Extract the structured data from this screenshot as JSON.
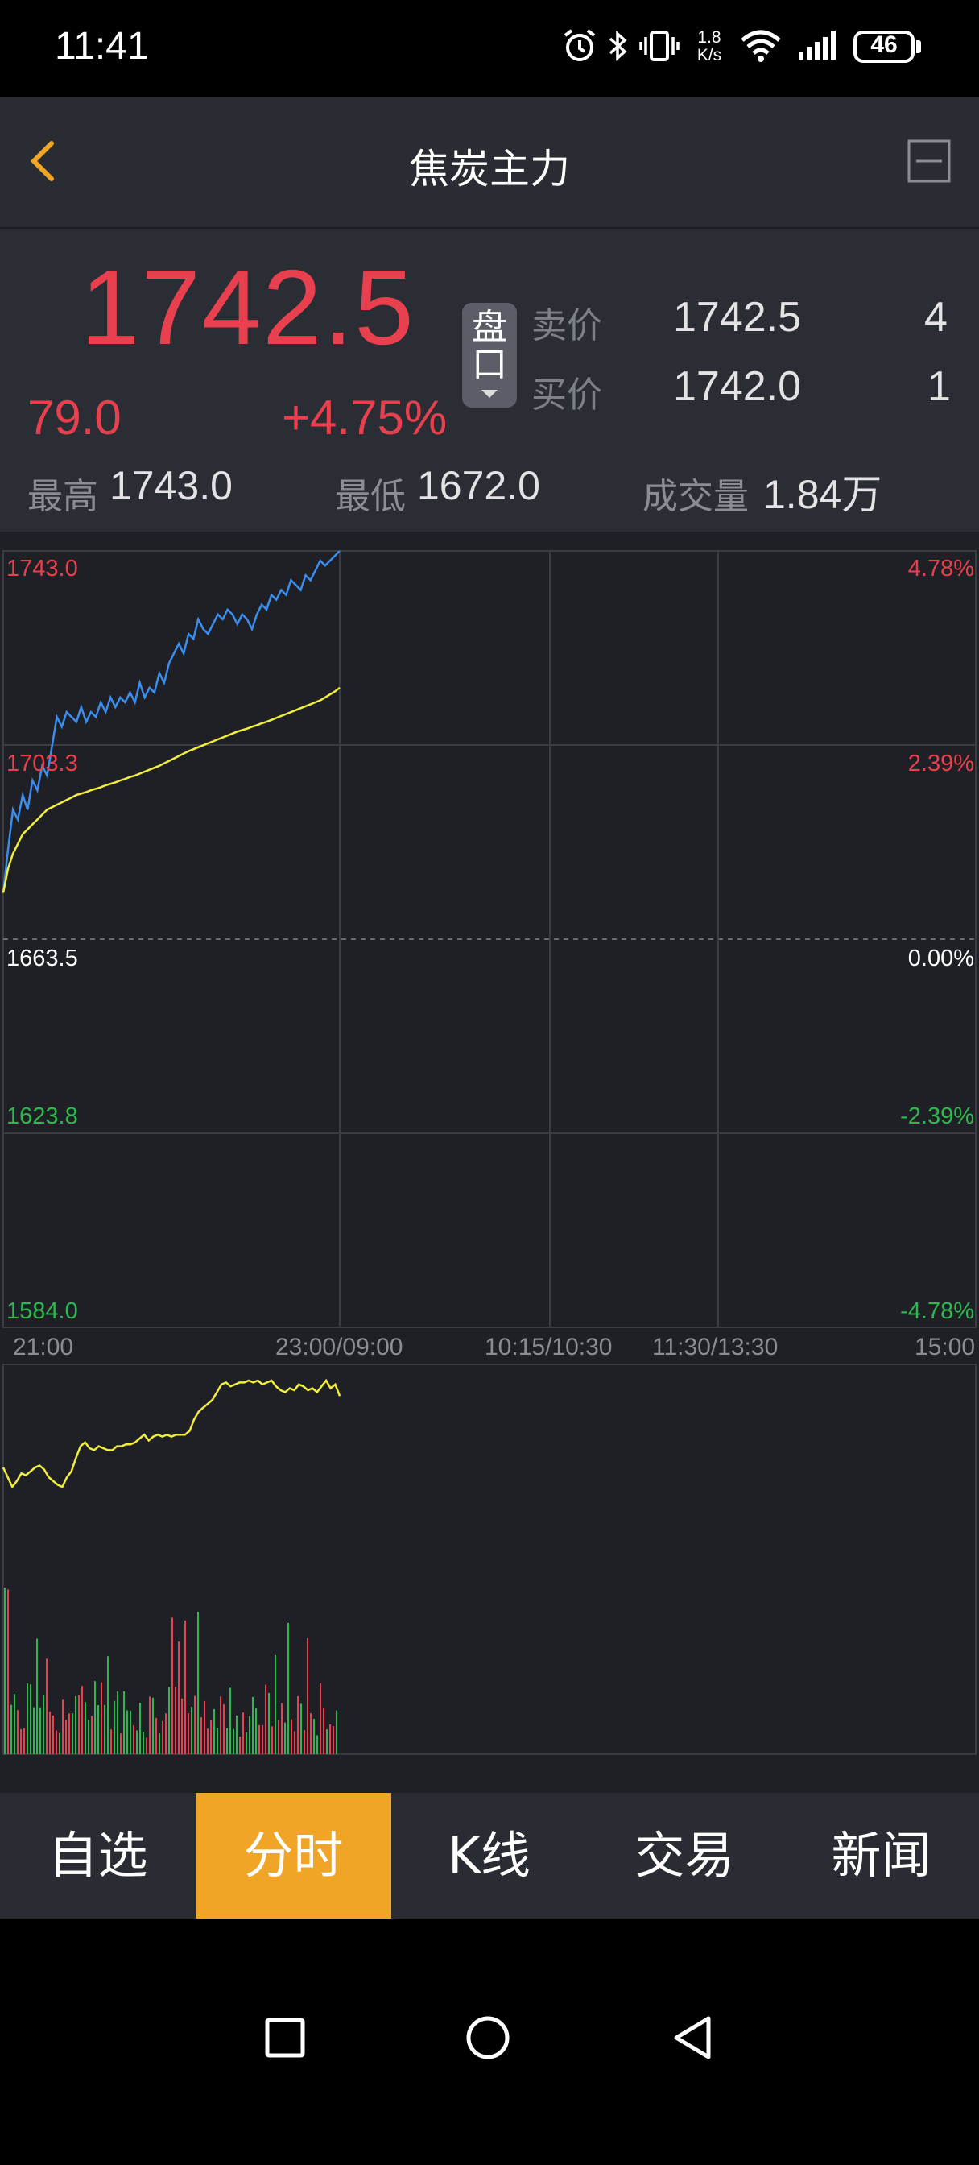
{
  "status_bar": {
    "time": "11:41",
    "net_speed_value": "1.8",
    "net_speed_unit": "K/s",
    "battery": "46",
    "icons": [
      "alarm-icon",
      "bluetooth-icon",
      "vibrate-icon",
      "wifi-icon",
      "signal-icon",
      "battery-icon"
    ]
  },
  "header": {
    "title": "焦炭主力",
    "back_icon": "chevron-left-icon",
    "minimize_icon": "minimize-box-icon"
  },
  "quote": {
    "last_price": "1742.5",
    "change": "79.0",
    "change_pct": "+4.75%",
    "pankou_label": "盘口",
    "ask_label": "卖价",
    "ask_price": "1742.5",
    "ask_volume": "4",
    "bid_label": "买价",
    "bid_price": "1742.0",
    "bid_volume": "1",
    "high_label": "最高",
    "high": "1743.0",
    "low_label": "最低",
    "low": "1672.0",
    "volume_label": "成交量",
    "volume": "1.84万"
  },
  "colors": {
    "up": "#e8404e",
    "down": "#2fb84f",
    "price_line": "#3b8ef0",
    "avg_line": "#f2ee3c",
    "accent": "#f0a526"
  },
  "chart_data": {
    "type": "line",
    "y_labels_left": [
      "1743.0",
      "1703.3",
      "1663.5",
      "1623.8",
      "1584.0"
    ],
    "y_labels_right": [
      "4.78%",
      "2.39%",
      "0.00%",
      "-2.39%",
      "-4.78%"
    ],
    "x_labels": [
      "21:00",
      "23:00/09:00",
      "10:15/10:30",
      "11:30/13:30",
      "15:00"
    ],
    "ylim": [
      1584.0,
      1743.0
    ],
    "reference_price": 1663.5,
    "series": [
      {
        "values": [
          1673,
          1682,
          1690,
          1688,
          1693,
          1690,
          1696,
          1694,
          1699,
          1697,
          1703,
          1709,
          1707,
          1710,
          1709,
          1708,
          1711,
          1708,
          1710,
          1709,
          1712,
          1710,
          1713,
          1711,
          1713,
          1712,
          1714,
          1712,
          1716,
          1713,
          1715,
          1714,
          1718,
          1716,
          1720,
          1722,
          1724,
          1722,
          1726,
          1725,
          1729,
          1727,
          1726,
          1728,
          1730,
          1729,
          1731,
          1730,
          1728,
          1730,
          1729,
          1727,
          1730,
          1732,
          1731,
          1734,
          1733,
          1735,
          1734,
          1737,
          1736,
          1735,
          1738,
          1737,
          1739,
          1741,
          1740,
          1741,
          1742,
          1743
        ]
      },
      {
        "values": [
          1673,
          1678,
          1681,
          1683,
          1685,
          1686,
          1687,
          1688,
          1689,
          1690,
          1690.5,
          1691,
          1691.5,
          1692,
          1692.5,
          1693,
          1693.3,
          1693.6,
          1694,
          1694.3,
          1694.6,
          1695,
          1695.3,
          1695.6,
          1696,
          1696.3,
          1696.7,
          1697,
          1697.4,
          1697.8,
          1698.2,
          1698.6,
          1699,
          1699.5,
          1700,
          1700.5,
          1701,
          1701.5,
          1702,
          1702.4,
          1702.8,
          1703.2,
          1703.6,
          1704,
          1704.4,
          1704.8,
          1705.2,
          1705.6,
          1706,
          1706.3,
          1706.6,
          1707,
          1707.3,
          1707.7,
          1708,
          1708.4,
          1708.8,
          1709.2,
          1709.6,
          1710,
          1710.4,
          1710.8,
          1711.2,
          1711.6,
          1712,
          1712.4,
          1713,
          1713.6,
          1714.2,
          1715
        ]
      }
    ],
    "sub_indicator": [
      0.55,
      0.5,
      0.45,
      0.48,
      0.52,
      0.51,
      0.53,
      0.55,
      0.56,
      0.54,
      0.5,
      0.48,
      0.46,
      0.45,
      0.5,
      0.53,
      0.6,
      0.66,
      0.68,
      0.65,
      0.64,
      0.66,
      0.65,
      0.64,
      0.64,
      0.66,
      0.66,
      0.67,
      0.67,
      0.68,
      0.7,
      0.72,
      0.69,
      0.71,
      0.72,
      0.71,
      0.72,
      0.71,
      0.72,
      0.72,
      0.72,
      0.74,
      0.8,
      0.84,
      0.86,
      0.88,
      0.9,
      0.94,
      0.98,
      0.99,
      0.97,
      0.98,
      0.99,
      0.99,
      1.0,
      0.99,
      1.0,
      0.98,
      0.99,
      1.0,
      0.97,
      0.95,
      0.94,
      0.96,
      0.95,
      0.98,
      0.97,
      0.95,
      0.96,
      0.94,
      0.97,
      1.0,
      0.96,
      0.98,
      0.92
    ]
  },
  "tabs": [
    {
      "label": "自选",
      "active": false
    },
    {
      "label": "分时",
      "active": true
    },
    {
      "label": "K线",
      "active": false
    },
    {
      "label": "交易",
      "active": false
    },
    {
      "label": "新闻",
      "active": false
    }
  ],
  "nav_bar": {
    "icons": [
      "recents-square-icon",
      "home-circle-icon",
      "back-triangle-icon"
    ]
  }
}
